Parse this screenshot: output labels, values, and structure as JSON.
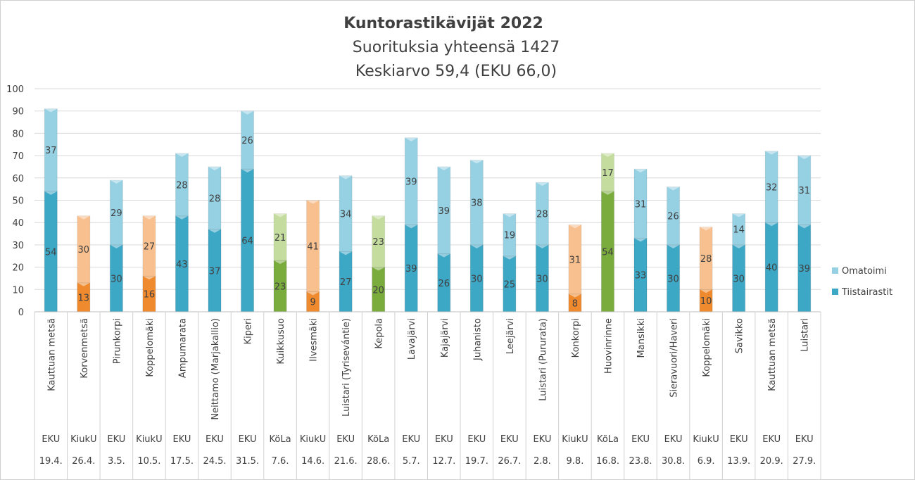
{
  "chart_data": {
    "type": "bar",
    "stacked": true,
    "title": "Kuntorastikävijät 2022",
    "subtitle_lines": [
      "Suorituksia yhteensä 1427",
      "Keskiarvo 59,4 (EKU 66,0)"
    ],
    "ylim": [
      0,
      100
    ],
    "yticks": [
      0,
      10,
      20,
      30,
      40,
      50,
      60,
      70,
      80,
      90,
      100
    ],
    "grid": true,
    "legend_position": "right",
    "categories": [
      "Kauttuan metsä",
      "Korvenmetsä",
      "Pirunkorpi",
      "Koppelomäki",
      "Ampumarata",
      "Neittamo (Marjakallio)",
      "Kiperi",
      "Kuikkusuo",
      "Ilvesmäki",
      "Luistari (Tyrisevántie)",
      "Kepola",
      "Lavajärvi",
      "Kajajärvi",
      "Juhanisto",
      "Leejärvi",
      "Luistari (Pururata)",
      "Konkorpi",
      "Huovinrinne",
      "Mansikki",
      "Sieravuori/Haveri",
      "Koppelomäki",
      "Savikko",
      "Kauttuan metsä",
      "Luistari"
    ],
    "clubs": [
      "EKU",
      "KiukU",
      "EKU",
      "KiukU",
      "EKU",
      "EKU",
      "EKU",
      "KöLa",
      "KiukU",
      "EKU",
      "KöLa",
      "EKU",
      "EKU",
      "EKU",
      "EKU",
      "EKU",
      "KiukU",
      "KöLa",
      "EKU",
      "EKU",
      "KiukU",
      "EKU",
      "EKU",
      "EKU"
    ],
    "dates": [
      "19.4.",
      "26.4.",
      "3.5.",
      "10.5.",
      "17.5.",
      "24.5.",
      "31.5.",
      "7.6.",
      "14.6.",
      "21.6.",
      "28.6.",
      "5.7.",
      "12.7.",
      "19.7.",
      "26.7.",
      "2.8.",
      "9.8.",
      "16.8.",
      "23.8.",
      "30.8.",
      "6.9.",
      "13.9.",
      "20.9.",
      "27.9."
    ],
    "series": [
      {
        "name": "Tiistairastit",
        "values": [
          54,
          13,
          30,
          16,
          43,
          37,
          64,
          23,
          9,
          27,
          20,
          39,
          26,
          30,
          25,
          30,
          8,
          54,
          33,
          30,
          10,
          30,
          40,
          39
        ]
      },
      {
        "name": "Omatoimi",
        "values": [
          37,
          30,
          29,
          27,
          28,
          28,
          26,
          21,
          41,
          34,
          23,
          39,
          39,
          38,
          19,
          28,
          31,
          17,
          31,
          26,
          28,
          14,
          32,
          31
        ]
      }
    ],
    "club_colors": {
      "EKU": {
        "dark": "#3da7c6",
        "light": "#95d0e3"
      },
      "KiukU": {
        "dark": "#ef8a2e",
        "light": "#f8c08f"
      },
      "KöLa": {
        "dark": "#7aab3d",
        "light": "#c4dd9f"
      }
    }
  },
  "legend": {
    "omatoimi": "Omatoimi",
    "tiistairastit": "Tiistairastit"
  }
}
